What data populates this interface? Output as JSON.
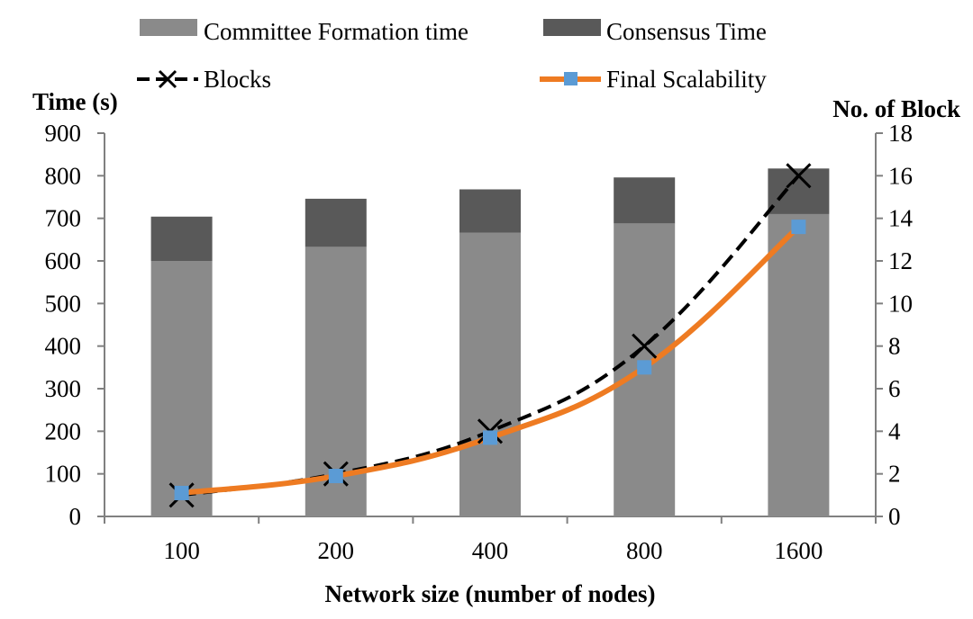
{
  "chart_data": {
    "type": "bar",
    "xlabel": "Network size (number of nodes)",
    "ylabel": "Time (s)",
    "y2label": "No. of Block",
    "categories": [
      "100",
      "200",
      "400",
      "800",
      "1600"
    ],
    "ylim": [
      0,
      900
    ],
    "y2lim": [
      0,
      18
    ],
    "yticks": [
      "0",
      "100",
      "200",
      "300",
      "400",
      "500",
      "600",
      "700",
      "800",
      "900"
    ],
    "y2ticks": [
      "0",
      "2",
      "4",
      "6",
      "8",
      "10",
      "12",
      "14",
      "16",
      "18"
    ],
    "stacked_series": [
      {
        "name": "Committee Formation time",
        "values": [
          600,
          633,
          666,
          688,
          710
        ],
        "color": "#8a8a8a"
      },
      {
        "name": "Consensus Time",
        "values": [
          104,
          113,
          102,
          108,
          107
        ],
        "color": "#595959"
      }
    ],
    "line_series": [
      {
        "name": "Blocks",
        "values": [
          1,
          2,
          4,
          8,
          16
        ],
        "axis": "right",
        "color": "#000000",
        "style": "dashed",
        "marker": "x"
      },
      {
        "name": "Final Scalability",
        "values": [
          1.1,
          1.9,
          3.7,
          7.0,
          13.6
        ],
        "axis": "right",
        "color": "#ee7b22",
        "style": "solid",
        "marker": "square",
        "marker_color": "#5b9bd5"
      }
    ],
    "legend_position": "top",
    "grid": false
  }
}
